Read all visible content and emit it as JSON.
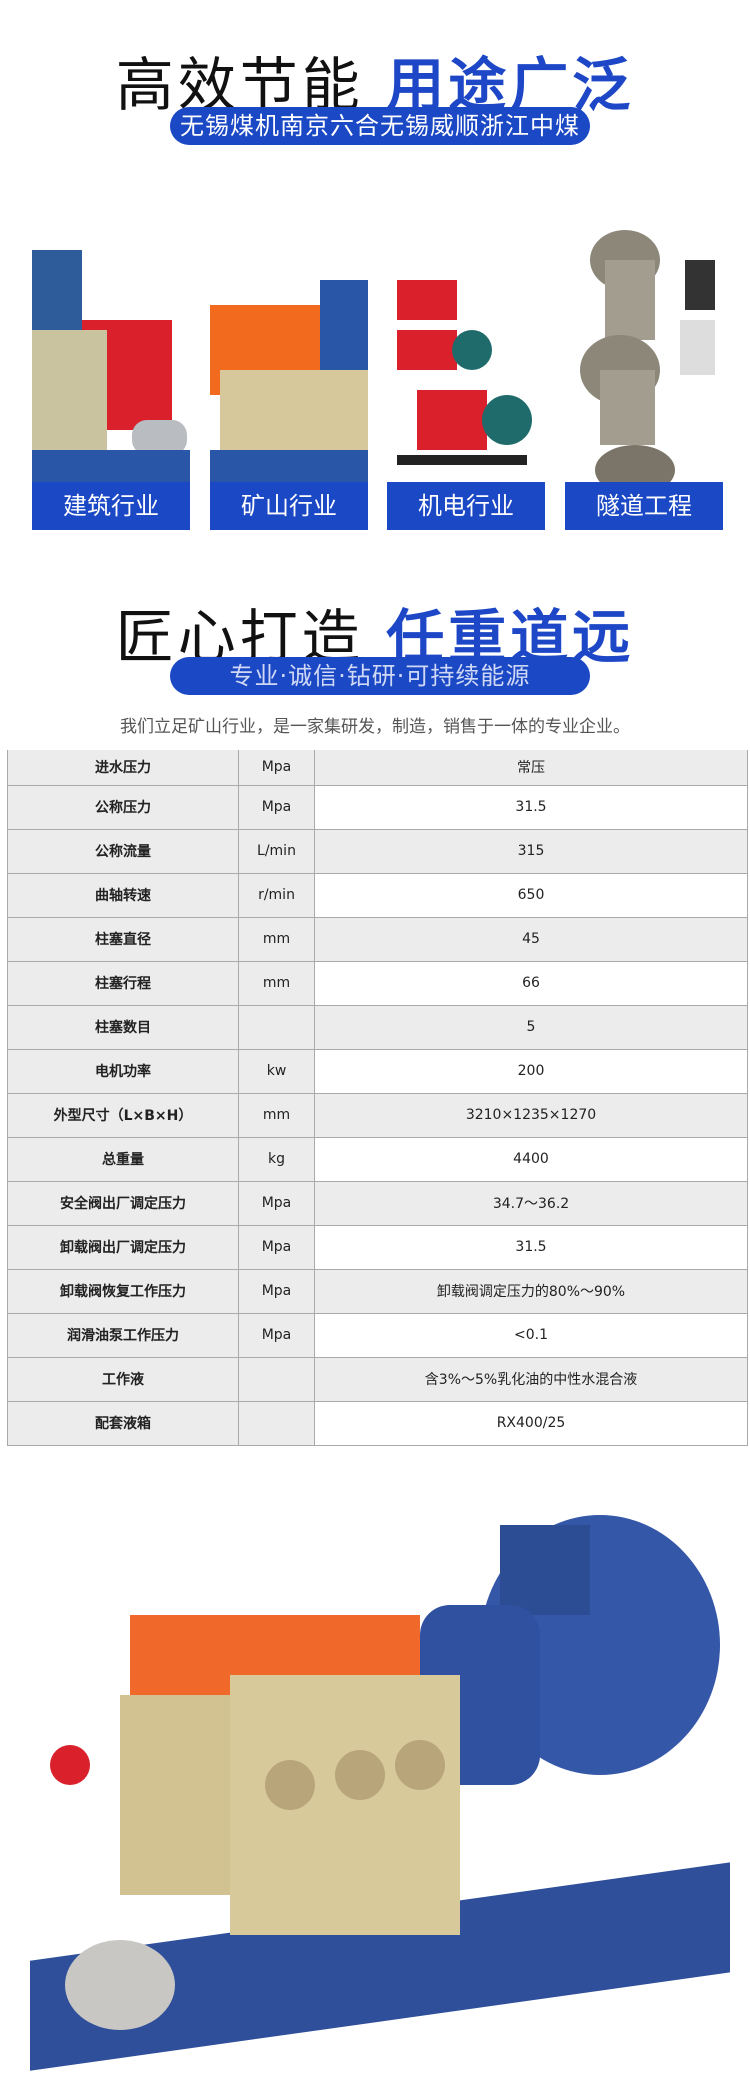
{
  "section1": {
    "title_plain": "高效节能",
    "title_highlight": "用途广泛",
    "pill": "无锡煤机南京六合无锡威顺浙江中煤"
  },
  "categories": [
    {
      "label": "建筑行业"
    },
    {
      "label": "矿山行业"
    },
    {
      "label": "机电行业"
    },
    {
      "label": "隧道工程"
    }
  ],
  "section2": {
    "title_plain": "匠心打造",
    "title_highlight": "任重道远",
    "pill": "专业·诚信·钻研·可持续能源",
    "intro": "我们立足矿山行业，是一家集研发，制造，销售于一体的专业企业。"
  },
  "specs": [
    {
      "name": "进水压力",
      "unit": "Mpa",
      "value": "常压"
    },
    {
      "name": "公称压力",
      "unit": "Mpa",
      "value": "31.5"
    },
    {
      "name": "公称流量",
      "unit": "L/min",
      "value": "315"
    },
    {
      "name": "曲轴转速",
      "unit": "r/min",
      "value": "650"
    },
    {
      "name": "柱塞直径",
      "unit": "mm",
      "value": "45"
    },
    {
      "name": "柱塞行程",
      "unit": "mm",
      "value": "66"
    },
    {
      "name": "柱塞数目",
      "unit": "",
      "value": "5"
    },
    {
      "name": "电机功率",
      "unit": "kw",
      "value": "200"
    },
    {
      "name": "外型尺寸（L×B×H）",
      "unit": "mm",
      "value": "3210×1235×1270"
    },
    {
      "name": "总重量",
      "unit": "kg",
      "value": "4400"
    },
    {
      "name": "安全阀出厂调定压力",
      "unit": "Mpa",
      "value": "34.7～36.2"
    },
    {
      "name": "卸载阀出厂调定压力",
      "unit": "Mpa",
      "value": "31.5"
    },
    {
      "name": "卸载阀恢复工作压力",
      "unit": "Mpa",
      "value": "卸载阀调定压力的80%～90%"
    },
    {
      "name": "润滑油泵工作压力",
      "unit": "Mpa",
      "value": "<0.1"
    },
    {
      "name": "工作液",
      "unit": "",
      "value": "含3%～5%乳化油的中性水混合液"
    },
    {
      "name": "配套液箱",
      "unit": "",
      "value": "RX400/25"
    }
  ],
  "colors": {
    "brand_blue": "#1b48c4",
    "table_gray": "#ececec"
  }
}
